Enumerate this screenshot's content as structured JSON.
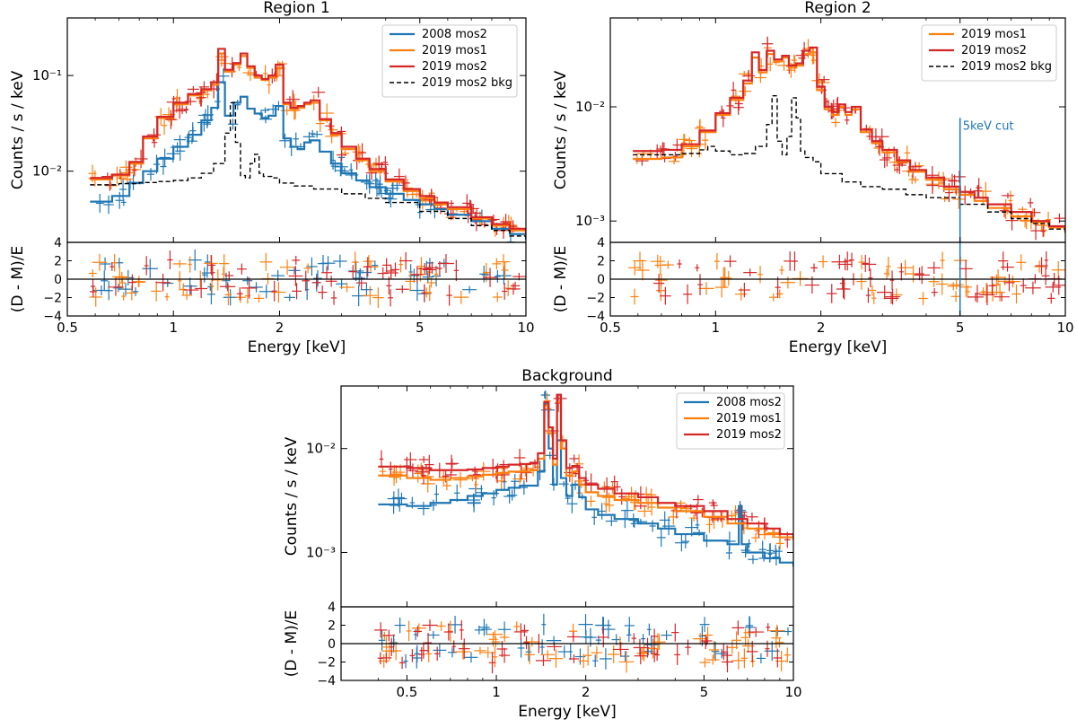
{
  "colors": {
    "c2008mos2": "#1f77b4",
    "c2019mos1": "#ff7f0e",
    "c2019mos2": "#d62728",
    "bkg": "#000000"
  },
  "chart_data": [
    {
      "id": "region1",
      "type": "line",
      "title": "Region 1",
      "xlabel": "Energy [keV]",
      "ylabel": "Counts / s / keV",
      "res_ylabel": "(D - M)/E",
      "xscale": "log",
      "yscale": "log",
      "xlim": [
        0.5,
        10
      ],
      "ylim": [
        0.0018,
        0.4
      ],
      "res_ylim": [
        -4,
        4
      ],
      "xticks": [
        0.5,
        1,
        2,
        5,
        10
      ],
      "xtick_labels": [
        "0.5",
        "1",
        "2",
        "5",
        "10"
      ],
      "yticks": [
        0.01,
        0.1
      ],
      "ytick_labels": [
        "10⁻²",
        "10⁻¹"
      ],
      "res_yticks": [
        -4,
        -2,
        0,
        2,
        4
      ],
      "res_ytick_labels": [
        "−4",
        "−2",
        "0",
        "2",
        "4"
      ],
      "legend_position": "top-right",
      "legend": [
        "2008 mos2",
        "2019 mos1",
        "2019 mos2",
        "2019 mos2 bkg"
      ],
      "annotations": [],
      "series": [
        {
          "name": "2008 mos2",
          "color_key": "c2008mos2",
          "style": "step",
          "x": [
            0.58,
            0.67,
            0.75,
            0.82,
            0.9,
            1.0,
            1.1,
            1.2,
            1.28,
            1.34,
            1.4,
            1.48,
            1.55,
            1.62,
            1.7,
            1.78,
            1.86,
            1.95,
            2.05,
            2.15,
            2.25,
            2.35,
            2.45,
            2.6,
            2.8,
            3.0,
            3.3,
            3.6,
            4.0,
            4.5,
            5.0,
            5.5,
            6.0,
            7.0,
            8.0,
            9.0,
            10.0
          ],
          "values": [
            0.0048,
            0.0055,
            0.0075,
            0.01,
            0.0135,
            0.018,
            0.024,
            0.034,
            0.046,
            0.085,
            0.038,
            0.052,
            0.06,
            0.045,
            0.04,
            0.036,
            0.038,
            0.048,
            0.022,
            0.018,
            0.017,
            0.02,
            0.021,
            0.016,
            0.012,
            0.0095,
            0.008,
            0.0068,
            0.0058,
            0.005,
            0.0045,
            0.004,
            0.0035,
            0.003,
            0.0025,
            0.0022,
            0.0019
          ]
        },
        {
          "name": "2019 mos1",
          "color_key": "c2019mos1",
          "style": "step",
          "x": [
            0.58,
            0.67,
            0.75,
            0.82,
            0.9,
            1.0,
            1.1,
            1.2,
            1.28,
            1.34,
            1.4,
            1.48,
            1.55,
            1.62,
            1.7,
            1.78,
            1.86,
            1.95,
            2.05,
            2.15,
            2.25,
            2.35,
            2.45,
            2.6,
            2.8,
            3.0,
            3.3,
            3.6,
            4.0,
            4.5,
            5.0,
            5.5,
            6.0,
            7.0,
            8.0,
            9.0,
            10.0
          ],
          "values": [
            0.0082,
            0.009,
            0.012,
            0.022,
            0.036,
            0.05,
            0.062,
            0.07,
            0.08,
            0.17,
            0.11,
            0.13,
            0.16,
            0.12,
            0.095,
            0.09,
            0.095,
            0.12,
            0.05,
            0.045,
            0.046,
            0.05,
            0.052,
            0.034,
            0.024,
            0.017,
            0.013,
            0.01,
            0.0078,
            0.0062,
            0.0052,
            0.0045,
            0.004,
            0.0032,
            0.0027,
            0.0024,
            0.0021
          ]
        },
        {
          "name": "2019 mos2",
          "color_key": "c2019mos2",
          "style": "step",
          "x": [
            0.58,
            0.67,
            0.75,
            0.82,
            0.9,
            1.0,
            1.1,
            1.2,
            1.28,
            1.34,
            1.4,
            1.48,
            1.55,
            1.62,
            1.7,
            1.78,
            1.86,
            1.95,
            2.05,
            2.15,
            2.25,
            2.35,
            2.45,
            2.6,
            2.8,
            3.0,
            3.3,
            3.6,
            4.0,
            4.5,
            5.0,
            5.5,
            6.0,
            7.0,
            8.0,
            9.0,
            10.0
          ],
          "values": [
            0.0085,
            0.0092,
            0.0125,
            0.023,
            0.037,
            0.052,
            0.064,
            0.072,
            0.085,
            0.19,
            0.115,
            0.135,
            0.17,
            0.125,
            0.1,
            0.092,
            0.1,
            0.13,
            0.052,
            0.046,
            0.048,
            0.052,
            0.055,
            0.035,
            0.025,
            0.018,
            0.0135,
            0.0105,
            0.0082,
            0.0065,
            0.0055,
            0.0047,
            0.0042,
            0.0033,
            0.0028,
            0.0025,
            0.0022
          ]
        },
        {
          "name": "2019 mos2 bkg",
          "color_key": "bkg",
          "style": "dashed-step",
          "x": [
            0.58,
            0.7,
            0.8,
            0.9,
            1.0,
            1.1,
            1.2,
            1.3,
            1.4,
            1.45,
            1.5,
            1.55,
            1.6,
            1.65,
            1.7,
            1.75,
            1.8,
            1.9,
            2.0,
            2.2,
            2.5,
            3.0,
            3.5,
            4.0,
            5.0,
            6.0,
            7.0,
            8.0,
            9.0,
            10.0
          ],
          "values": [
            0.0072,
            0.0074,
            0.0076,
            0.0078,
            0.008,
            0.0085,
            0.0095,
            0.012,
            0.025,
            0.052,
            0.02,
            0.009,
            0.0085,
            0.012,
            0.015,
            0.0095,
            0.0088,
            0.0085,
            0.0075,
            0.007,
            0.0065,
            0.0058,
            0.0052,
            0.0047,
            0.0038,
            0.0032,
            0.0027,
            0.0024,
            0.0021,
            0.0019
          ]
        }
      ]
    },
    {
      "id": "region2",
      "type": "line",
      "title": "Region 2",
      "xlabel": "Energy [keV]",
      "ylabel": "Counts / s / keV",
      "res_ylabel": "(D - M)/E",
      "xscale": "log",
      "yscale": "log",
      "xlim": [
        0.5,
        10
      ],
      "ylim": [
        0.00065,
        0.06
      ],
      "res_ylim": [
        -4,
        4
      ],
      "xticks": [
        0.5,
        1,
        2,
        5,
        10
      ],
      "xtick_labels": [
        "0.5",
        "1",
        "2",
        "5",
        "10"
      ],
      "yticks": [
        0.001,
        0.01
      ],
      "ytick_labels": [
        "10⁻³",
        "10⁻²"
      ],
      "res_yticks": [
        -4,
        -2,
        0,
        2,
        4
      ],
      "res_ytick_labels": [
        "−4",
        "−2",
        "0",
        "2",
        "4"
      ],
      "legend_position": "top-right",
      "legend": [
        "2019 mos1",
        "2019 mos2",
        "2019 mos2 bkg"
      ],
      "annotations": [
        {
          "text": "5keV cut",
          "x": 5
        }
      ],
      "series": [
        {
          "name": "2019 mos1",
          "color_key": "c2019mos1",
          "style": "step",
          "x": [
            0.58,
            0.7,
            0.8,
            0.9,
            1.0,
            1.1,
            1.2,
            1.27,
            1.33,
            1.4,
            1.47,
            1.55,
            1.62,
            1.7,
            1.78,
            1.86,
            1.95,
            2.05,
            2.15,
            2.25,
            2.35,
            2.45,
            2.6,
            2.8,
            3.0,
            3.3,
            3.6,
            4.0,
            4.5,
            5.0,
            5.5,
            6.0,
            7.0,
            8.0,
            9.0,
            10.0
          ],
          "values": [
            0.0035,
            0.0036,
            0.0045,
            0.006,
            0.0085,
            0.0115,
            0.016,
            0.027,
            0.02,
            0.029,
            0.025,
            0.027,
            0.022,
            0.023,
            0.029,
            0.03,
            0.014,
            0.0095,
            0.0085,
            0.01,
            0.0085,
            0.0095,
            0.006,
            0.0048,
            0.004,
            0.0033,
            0.0027,
            0.0023,
            0.0019,
            0.0017,
            0.0015,
            0.0013,
            0.0011,
            0.00098,
            0.00088,
            0.00078
          ]
        },
        {
          "name": "2019 mos2",
          "color_key": "c2019mos2",
          "style": "step",
          "x": [
            0.58,
            0.7,
            0.8,
            0.9,
            1.0,
            1.1,
            1.2,
            1.27,
            1.33,
            1.4,
            1.47,
            1.55,
            1.62,
            1.7,
            1.78,
            1.86,
            1.95,
            2.05,
            2.15,
            2.25,
            2.35,
            2.45,
            2.6,
            2.8,
            3.0,
            3.3,
            3.6,
            4.0,
            4.5,
            5.0,
            5.5,
            6.0,
            7.0,
            8.0,
            9.0,
            10.0
          ],
          "values": [
            0.0041,
            0.0042,
            0.0047,
            0.0062,
            0.0088,
            0.012,
            0.017,
            0.03,
            0.021,
            0.031,
            0.026,
            0.028,
            0.023,
            0.024,
            0.031,
            0.033,
            0.015,
            0.01,
            0.009,
            0.0105,
            0.009,
            0.01,
            0.0063,
            0.005,
            0.0042,
            0.0034,
            0.0028,
            0.0024,
            0.002,
            0.0018,
            0.0016,
            0.0014,
            0.0012,
            0.001,
            0.0009,
            0.0008
          ]
        },
        {
          "name": "2019 mos2 bkg",
          "color_key": "bkg",
          "style": "dashed-step",
          "x": [
            0.58,
            0.7,
            0.8,
            0.9,
            0.95,
            1.0,
            1.1,
            1.2,
            1.3,
            1.4,
            1.45,
            1.5,
            1.55,
            1.6,
            1.65,
            1.7,
            1.75,
            1.8,
            1.9,
            2.0,
            2.3,
            2.6,
            3.0,
            3.5,
            4.0,
            5.0,
            6.0,
            7.0,
            8.0,
            9.0,
            10.0
          ],
          "values": [
            0.0038,
            0.0038,
            0.0039,
            0.0042,
            0.0045,
            0.0041,
            0.0038,
            0.0039,
            0.0045,
            0.007,
            0.0125,
            0.005,
            0.0038,
            0.0055,
            0.012,
            0.008,
            0.0041,
            0.0036,
            0.0033,
            0.0026,
            0.0022,
            0.002,
            0.0019,
            0.0017,
            0.0016,
            0.0014,
            0.0012,
            0.00105,
            0.00095,
            0.00085,
            0.00078
          ]
        }
      ]
    },
    {
      "id": "background",
      "type": "line",
      "title": "Background",
      "xlabel": "Energy [keV]",
      "ylabel": "Counts / s / keV",
      "res_ylabel": "(D - M)/E",
      "xscale": "log",
      "yscale": "log",
      "xlim": [
        0.3,
        10
      ],
      "ylim": [
        0.0003,
        0.04
      ],
      "res_ylim": [
        -4,
        4
      ],
      "xticks": [
        0.5,
        1,
        2,
        5,
        10
      ],
      "xtick_labels": [
        "0.5",
        "1",
        "2",
        "5",
        "10"
      ],
      "yticks": [
        0.001,
        0.01
      ],
      "ytick_labels": [
        "10⁻³",
        "10⁻²"
      ],
      "res_yticks": [
        -4,
        -2,
        0,
        2,
        4
      ],
      "res_ytick_labels": [
        "−4",
        "−2",
        "0",
        "2",
        "4"
      ],
      "legend_position": "top-right",
      "legend": [
        "2008 mos2",
        "2019 mos1",
        "2019 mos2"
      ],
      "annotations": [],
      "series": [
        {
          "name": "2008 mos2",
          "color_key": "c2008mos2",
          "style": "step",
          "x": [
            0.4,
            0.5,
            0.6,
            0.7,
            0.8,
            0.9,
            1.0,
            1.1,
            1.2,
            1.3,
            1.38,
            1.45,
            1.5,
            1.55,
            1.6,
            1.65,
            1.72,
            1.8,
            1.9,
            2.0,
            2.2,
            2.5,
            3.0,
            3.5,
            4.0,
            5.0,
            6.0,
            6.4,
            6.55,
            6.7,
            7.0,
            8.0,
            9.0,
            10.0
          ],
          "values": [
            0.0029,
            0.0028,
            0.003,
            0.0032,
            0.0035,
            0.0037,
            0.004,
            0.0042,
            0.0044,
            0.0044,
            0.006,
            0.027,
            0.01,
            0.0045,
            0.012,
            0.0052,
            0.0035,
            0.0045,
            0.0034,
            0.0026,
            0.0023,
            0.0021,
            0.0019,
            0.0017,
            0.0015,
            0.0013,
            0.0012,
            0.0012,
            0.0028,
            0.0012,
            0.001,
            0.00088,
            0.0008,
            0.00073
          ]
        },
        {
          "name": "2019 mos1",
          "color_key": "c2019mos1",
          "style": "step",
          "x": [
            0.4,
            0.5,
            0.6,
            0.7,
            0.8,
            0.9,
            1.0,
            1.1,
            1.2,
            1.3,
            1.38,
            1.45,
            1.5,
            1.55,
            1.6,
            1.65,
            1.72,
            1.8,
            1.9,
            2.0,
            2.2,
            2.5,
            3.0,
            3.5,
            4.0,
            5.0,
            6.0,
            7.0,
            8.0,
            9.0,
            10.0
          ],
          "values": [
            0.0055,
            0.0052,
            0.005,
            0.0052,
            0.0054,
            0.0056,
            0.0058,
            0.006,
            0.006,
            0.0062,
            0.008,
            0.026,
            0.014,
            0.007,
            0.028,
            0.01,
            0.0055,
            0.006,
            0.0045,
            0.0038,
            0.0035,
            0.0032,
            0.003,
            0.0027,
            0.0025,
            0.0022,
            0.0019,
            0.0017,
            0.0015,
            0.0014,
            0.0013
          ]
        },
        {
          "name": "2019 mos2",
          "color_key": "c2019mos2",
          "style": "step",
          "x": [
            0.4,
            0.5,
            0.6,
            0.7,
            0.8,
            0.9,
            1.0,
            1.1,
            1.2,
            1.3,
            1.38,
            1.45,
            1.5,
            1.55,
            1.6,
            1.65,
            1.72,
            1.8,
            1.9,
            2.0,
            2.2,
            2.5,
            3.0,
            3.5,
            4.0,
            5.0,
            6.0,
            7.0,
            8.0,
            9.0,
            10.0
          ],
          "values": [
            0.0067,
            0.0065,
            0.0062,
            0.0062,
            0.0063,
            0.0065,
            0.0067,
            0.007,
            0.0071,
            0.0073,
            0.009,
            0.028,
            0.016,
            0.008,
            0.033,
            0.012,
            0.0065,
            0.0068,
            0.0052,
            0.0045,
            0.0041,
            0.0037,
            0.0034,
            0.003,
            0.0028,
            0.0025,
            0.0021,
            0.0019,
            0.0017,
            0.0015,
            0.0014
          ]
        }
      ]
    }
  ]
}
